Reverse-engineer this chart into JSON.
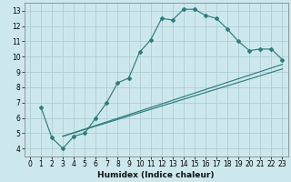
{
  "xlabel": "Humidex (Indice chaleur)",
  "xlim": [
    -0.5,
    23.5
  ],
  "ylim": [
    3.5,
    13.5
  ],
  "yticks": [
    4,
    5,
    6,
    7,
    8,
    9,
    10,
    11,
    12,
    13
  ],
  "xticks": [
    0,
    1,
    2,
    3,
    4,
    5,
    6,
    7,
    8,
    9,
    10,
    11,
    12,
    13,
    14,
    15,
    16,
    17,
    18,
    19,
    20,
    21,
    22,
    23
  ],
  "bg_color": "#cde8ed",
  "grid_color": "#b0cdd4",
  "line_color": "#2e7d7d",
  "line1_x": [
    1,
    2,
    3,
    4,
    5,
    6,
    7,
    8,
    9,
    10,
    11,
    12,
    13,
    14,
    15,
    16,
    17,
    18,
    19,
    20,
    21,
    22,
    23
  ],
  "line1_y": [
    6.7,
    4.7,
    4.0,
    4.8,
    5.0,
    6.0,
    7.0,
    8.3,
    8.6,
    10.3,
    11.1,
    12.5,
    12.4,
    13.1,
    13.1,
    12.7,
    12.5,
    11.8,
    11.0,
    10.4,
    10.5,
    10.5,
    9.8
  ],
  "line2_x": [
    3,
    23
  ],
  "line2_y": [
    4.8,
    9.5
  ],
  "line3_x": [
    3,
    23
  ],
  "line3_y": [
    4.8,
    9.2
  ],
  "xlabel_fontsize": 6.5,
  "tick_fontsize": 5.5
}
